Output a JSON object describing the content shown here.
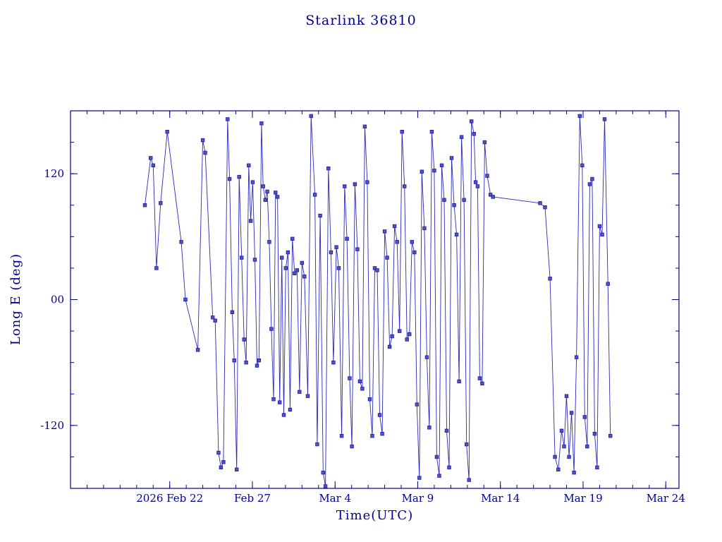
{
  "colors": {
    "text": "#000090",
    "axis": "#000090",
    "line": "#2929b8",
    "marker_fill": "#5050c8",
    "marker_stroke": "#1c1c9c",
    "background": "#ffffff"
  },
  "chart_data": {
    "type": "line",
    "title": "Starlink 36810",
    "xlabel": "Time(UTC)",
    "ylabel": "Long E (deg)",
    "x_encoding": "days, where tick value 6 = 2026 Feb 22 (1 unit = 1 day)",
    "xlim": [
      0,
      36.8
    ],
    "ylim": [
      -180,
      180
    ],
    "x_ticks": [
      {
        "value": 6,
        "label": "2026 Feb 22"
      },
      {
        "value": 11,
        "label": "Feb 27"
      },
      {
        "value": 16,
        "label": "Mar 4"
      },
      {
        "value": 21,
        "label": "Mar 9"
      },
      {
        "value": 26,
        "label": "Mar 14"
      },
      {
        "value": 31,
        "label": "Mar 19"
      },
      {
        "value": 36,
        "label": "Mar 24"
      }
    ],
    "y_ticks": [
      {
        "value": -120,
        "label": "-120"
      },
      {
        "value": 0,
        "label": "00"
      },
      {
        "value": 120,
        "label": "120"
      }
    ],
    "x_minor_step": 1,
    "y_minor_step": 30,
    "grid": false,
    "legend": null,
    "marker": "square",
    "points": [
      [
        4.5,
        90
      ],
      [
        4.85,
        135
      ],
      [
        5.0,
        128
      ],
      [
        5.2,
        30
      ],
      [
        5.45,
        92
      ],
      [
        5.85,
        160
      ],
      [
        6.7,
        55
      ],
      [
        6.95,
        0
      ],
      [
        7.7,
        -48
      ],
      [
        8.0,
        152
      ],
      [
        8.15,
        140
      ],
      [
        8.6,
        -17
      ],
      [
        8.75,
        -20
      ],
      [
        8.95,
        -146
      ],
      [
        9.1,
        -160
      ],
      [
        9.25,
        -155
      ],
      [
        9.5,
        172
      ],
      [
        9.62,
        115
      ],
      [
        9.78,
        -12
      ],
      [
        9.9,
        -58
      ],
      [
        10.05,
        -162
      ],
      [
        10.2,
        117
      ],
      [
        10.35,
        40
      ],
      [
        10.5,
        -38
      ],
      [
        10.62,
        -60
      ],
      [
        10.78,
        128
      ],
      [
        10.9,
        75
      ],
      [
        11.02,
        112
      ],
      [
        11.15,
        38
      ],
      [
        11.28,
        -63
      ],
      [
        11.4,
        -58
      ],
      [
        11.55,
        168
      ],
      [
        11.65,
        108
      ],
      [
        11.78,
        95
      ],
      [
        11.9,
        103
      ],
      [
        12.02,
        55
      ],
      [
        12.15,
        -28
      ],
      [
        12.28,
        -95
      ],
      [
        12.4,
        102
      ],
      [
        12.52,
        98
      ],
      [
        12.65,
        -98
      ],
      [
        12.78,
        40
      ],
      [
        12.9,
        -110
      ],
      [
        13.02,
        30
      ],
      [
        13.15,
        45
      ],
      [
        13.28,
        -105
      ],
      [
        13.42,
        58
      ],
      [
        13.55,
        25
      ],
      [
        13.7,
        28
      ],
      [
        13.85,
        -88
      ],
      [
        14.0,
        35
      ],
      [
        14.15,
        22
      ],
      [
        14.35,
        -92
      ],
      [
        14.55,
        175
      ],
      [
        14.78,
        100
      ],
      [
        14.92,
        -138
      ],
      [
        15.1,
        80
      ],
      [
        15.28,
        -165
      ],
      [
        15.42,
        -178
      ],
      [
        15.6,
        125
      ],
      [
        15.75,
        45
      ],
      [
        15.9,
        -60
      ],
      [
        16.08,
        50
      ],
      [
        16.22,
        30
      ],
      [
        16.4,
        -130
      ],
      [
        16.58,
        108
      ],
      [
        16.72,
        58
      ],
      [
        16.88,
        -75
      ],
      [
        17.02,
        -140
      ],
      [
        17.2,
        110
      ],
      [
        17.35,
        48
      ],
      [
        17.5,
        -78
      ],
      [
        17.65,
        -85
      ],
      [
        17.8,
        165
      ],
      [
        17.95,
        112
      ],
      [
        18.1,
        -95
      ],
      [
        18.25,
        -130
      ],
      [
        18.4,
        30
      ],
      [
        18.55,
        28
      ],
      [
        18.7,
        -110
      ],
      [
        18.85,
        -128
      ],
      [
        19.0,
        65
      ],
      [
        19.15,
        40
      ],
      [
        19.3,
        -45
      ],
      [
        19.45,
        -35
      ],
      [
        19.6,
        70
      ],
      [
        19.75,
        55
      ],
      [
        19.9,
        -30
      ],
      [
        20.05,
        160
      ],
      [
        20.2,
        108
      ],
      [
        20.35,
        -38
      ],
      [
        20.5,
        -33
      ],
      [
        20.65,
        55
      ],
      [
        20.8,
        45
      ],
      [
        20.95,
        -100
      ],
      [
        21.1,
        -170
      ],
      [
        21.25,
        122
      ],
      [
        21.4,
        68
      ],
      [
        21.55,
        -55
      ],
      [
        21.7,
        -122
      ],
      [
        21.85,
        160
      ],
      [
        22.0,
        123
      ],
      [
        22.15,
        -150
      ],
      [
        22.3,
        -168
      ],
      [
        22.45,
        128
      ],
      [
        22.6,
        95
      ],
      [
        22.75,
        -125
      ],
      [
        22.9,
        -160
      ],
      [
        23.05,
        135
      ],
      [
        23.2,
        90
      ],
      [
        23.35,
        62
      ],
      [
        23.5,
        -78
      ],
      [
        23.65,
        155
      ],
      [
        23.8,
        95
      ],
      [
        23.95,
        -138
      ],
      [
        24.1,
        -172
      ],
      [
        24.25,
        170
      ],
      [
        24.4,
        158
      ],
      [
        24.5,
        112
      ],
      [
        24.62,
        108
      ],
      [
        24.75,
        -75
      ],
      [
        24.9,
        -80
      ],
      [
        25.05,
        150
      ],
      [
        25.2,
        118
      ],
      [
        25.4,
        100
      ],
      [
        25.55,
        98
      ],
      [
        28.4,
        92
      ],
      [
        28.7,
        88
      ],
      [
        29.0,
        20
      ],
      [
        29.3,
        -150
      ],
      [
        29.5,
        -162
      ],
      [
        29.7,
        -125
      ],
      [
        29.85,
        -140
      ],
      [
        30.0,
        -92
      ],
      [
        30.15,
        -150
      ],
      [
        30.3,
        -108
      ],
      [
        30.45,
        -165
      ],
      [
        30.6,
        -55
      ],
      [
        30.8,
        175
      ],
      [
        30.95,
        128
      ],
      [
        31.1,
        -112
      ],
      [
        31.25,
        -140
      ],
      [
        31.4,
        110
      ],
      [
        31.55,
        115
      ],
      [
        31.7,
        -128
      ],
      [
        31.85,
        -160
      ],
      [
        32.0,
        70
      ],
      [
        32.15,
        62
      ],
      [
        32.3,
        172
      ],
      [
        32.5,
        15
      ],
      [
        32.65,
        -130
      ]
    ]
  }
}
